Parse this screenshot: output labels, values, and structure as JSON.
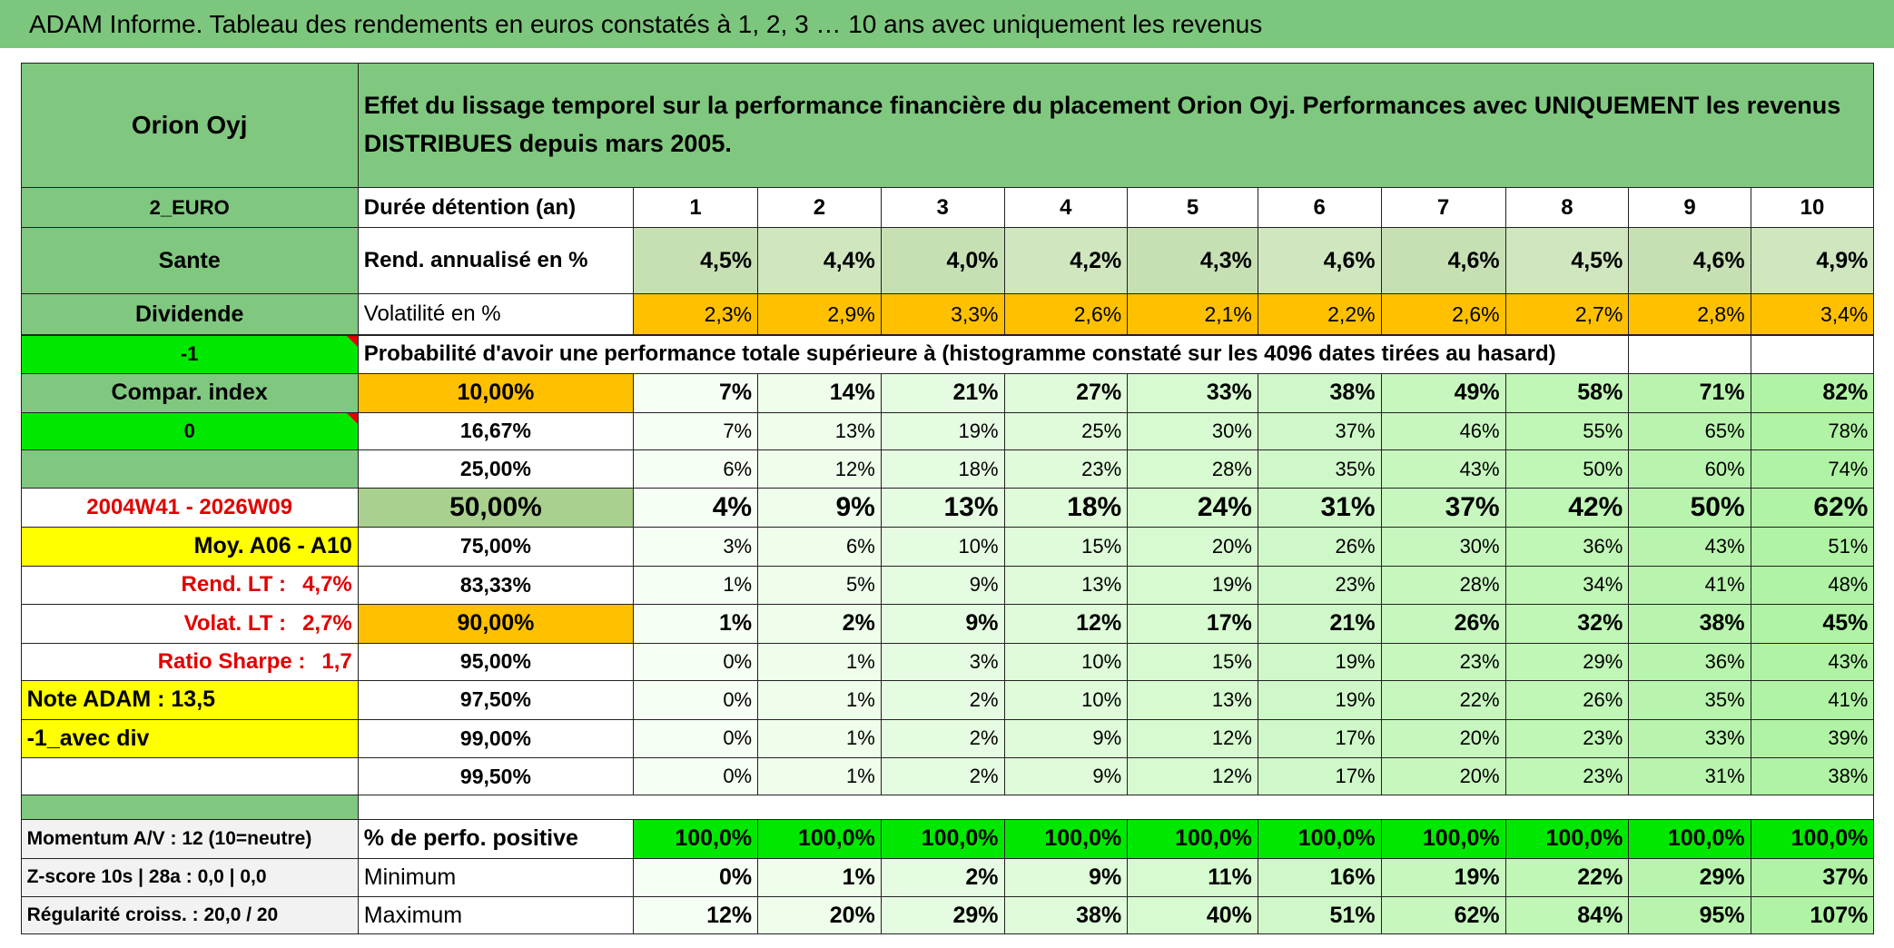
{
  "header": {
    "title": "ADAM Informe. Tableau des rendements en euros constatés à 1, 2, 3 … 10 ans avec uniquement les revenus"
  },
  "sidebar": {
    "name": "Orion Oyj",
    "code": "2_EURO",
    "sector": "Sante",
    "kind": "Dividende",
    "flag": -1,
    "compar_label": "Compar. index",
    "compar_value": 0,
    "period": "2004W41 - 2026W09",
    "average": "Moy. A06 - A10",
    "rend_label": "Rend. LT :",
    "rend_value": "4,7%",
    "volat_label": "Volat. LT :",
    "volat_value": "2,7%",
    "sharpe_label": "Ratio Sharpe :",
    "sharpe_value": "1,7",
    "note": "Note ADAM : 13,5",
    "div_mode": "-1_avec div",
    "momentum": "Momentum A/V : 12 (10=neutre)",
    "zscore": "Z-score 10s | 28a : 0,0 | 0,0",
    "regularity": "Régularité croiss. : 20,0 / 20"
  },
  "table": {
    "intro": "Effet du lissage temporel sur la performance financière du placement Orion Oyj. Performances avec UNIQUEMENT les revenus DISTRIBUES depuis mars 2005.",
    "durations": {
      "label": "Durée détention (an)",
      "values": [
        1,
        2,
        3,
        4,
        5,
        6,
        7,
        8,
        9,
        10
      ]
    },
    "returns": {
      "label": "Rend. annualisé en %",
      "values": [
        "4,5%",
        "4,4%",
        "4,0%",
        "4,2%",
        "4,3%",
        "4,6%",
        "4,6%",
        "4,5%",
        "4,6%",
        "4,9%"
      ]
    },
    "volatility": {
      "label": "Volatilité en %",
      "values": [
        "2,3%",
        "2,9%",
        "3,3%",
        "2,6%",
        "2,1%",
        "2,2%",
        "2,6%",
        "2,7%",
        "2,8%",
        "3,4%"
      ]
    },
    "probability_title": "Probabilité d'avoir une performance totale supérieure à (histogramme constaté sur les 4096 dates tirées au hasard)",
    "probability_rows": [
      {
        "threshold": "10,00%",
        "values": [
          "7%",
          "14%",
          "21%",
          "27%",
          "33%",
          "38%",
          "49%",
          "58%",
          "71%",
          "82%"
        ]
      },
      {
        "threshold": "16,67%",
        "values": [
          "7%",
          "13%",
          "19%",
          "25%",
          "30%",
          "37%",
          "46%",
          "55%",
          "65%",
          "78%"
        ]
      },
      {
        "threshold": "25,00%",
        "values": [
          "6%",
          "12%",
          "18%",
          "23%",
          "28%",
          "35%",
          "43%",
          "50%",
          "60%",
          "74%"
        ]
      },
      {
        "threshold": "50,00%",
        "values": [
          "4%",
          "9%",
          "13%",
          "18%",
          "24%",
          "31%",
          "37%",
          "42%",
          "50%",
          "62%"
        ]
      },
      {
        "threshold": "75,00%",
        "values": [
          "3%",
          "6%",
          "10%",
          "15%",
          "20%",
          "26%",
          "30%",
          "36%",
          "43%",
          "51%"
        ]
      },
      {
        "threshold": "83,33%",
        "values": [
          "1%",
          "5%",
          "9%",
          "13%",
          "19%",
          "23%",
          "28%",
          "34%",
          "41%",
          "48%"
        ]
      },
      {
        "threshold": "90,00%",
        "values": [
          "1%",
          "2%",
          "9%",
          "12%",
          "17%",
          "21%",
          "26%",
          "32%",
          "38%",
          "45%"
        ]
      },
      {
        "threshold": "95,00%",
        "values": [
          "0%",
          "1%",
          "3%",
          "10%",
          "15%",
          "19%",
          "23%",
          "29%",
          "36%",
          "43%"
        ]
      },
      {
        "threshold": "97,50%",
        "values": [
          "0%",
          "1%",
          "2%",
          "10%",
          "13%",
          "19%",
          "22%",
          "26%",
          "35%",
          "41%"
        ]
      },
      {
        "threshold": "99,00%",
        "values": [
          "0%",
          "1%",
          "2%",
          "9%",
          "12%",
          "17%",
          "20%",
          "23%",
          "33%",
          "39%"
        ]
      },
      {
        "threshold": "99,50%",
        "values": [
          "0%",
          "1%",
          "2%",
          "9%",
          "12%",
          "17%",
          "20%",
          "23%",
          "31%",
          "38%"
        ]
      }
    ],
    "stats_rows": [
      {
        "label": "% de perfo. positive",
        "values": [
          "100,0%",
          "100,0%",
          "100,0%",
          "100,0%",
          "100,0%",
          "100,0%",
          "100,0%",
          "100,0%",
          "100,0%",
          "100,0%"
        ]
      },
      {
        "label": "Minimum",
        "values": [
          "0%",
          "1%",
          "2%",
          "9%",
          "11%",
          "16%",
          "19%",
          "22%",
          "29%",
          "37%"
        ]
      },
      {
        "label": "Maximum",
        "values": [
          "12%",
          "20%",
          "29%",
          "38%",
          "40%",
          "51%",
          "62%",
          "84%",
          "95%",
          "107%"
        ]
      }
    ]
  }
}
